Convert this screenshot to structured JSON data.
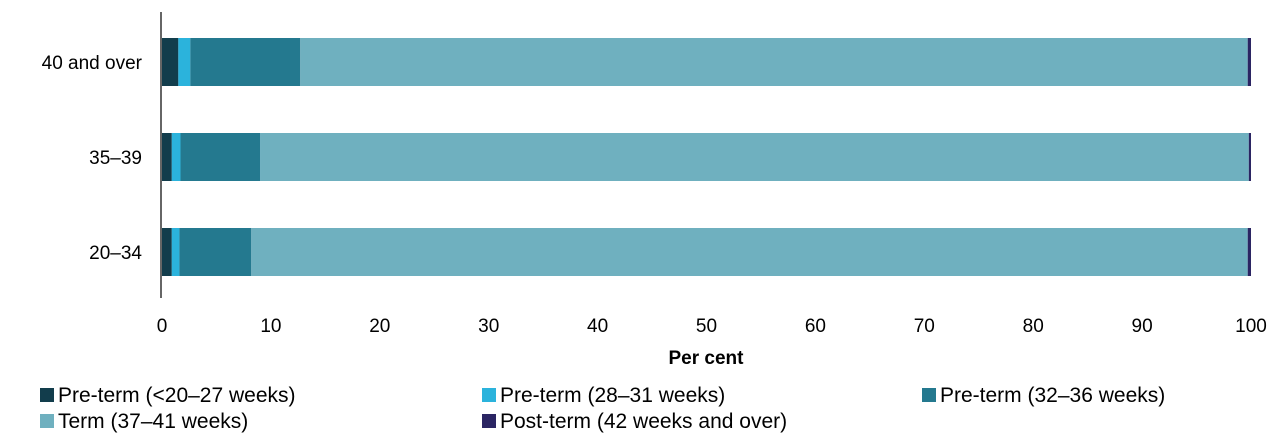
{
  "chart_data": {
    "type": "bar",
    "orientation": "horizontal",
    "stacked": true,
    "categories": [
      "40 and over",
      "35–39",
      "20–34"
    ],
    "series": [
      {
        "name": "Pre-term (<20–27 weeks)",
        "color": "#123d4c",
        "values": [
          1.5,
          0.9,
          0.9
        ]
      },
      {
        "name": "Pre-term (28–31 weeks)",
        "color": "#2bb3dc",
        "values": [
          1.1,
          0.8,
          0.7
        ]
      },
      {
        "name": "Pre-term (32–36 weeks)",
        "color": "#24798f",
        "values": [
          10.1,
          7.3,
          6.6
        ]
      },
      {
        "name": "Term (37–41 weeks)",
        "color": "#6fb0bf",
        "values": [
          87.0,
          90.8,
          91.5
        ]
      },
      {
        "name": "Post-term (42 weeks and over)",
        "color": "#2b2563",
        "values": [
          0.3,
          0.2,
          0.3
        ]
      }
    ],
    "xlabel": "Per cent",
    "ylabel": "",
    "xlim": [
      0,
      100
    ],
    "xticks": [
      "0",
      "10",
      "20",
      "30",
      "40",
      "50",
      "60",
      "70",
      "80",
      "90",
      "100"
    ],
    "grid": false,
    "legend": "bottom"
  }
}
